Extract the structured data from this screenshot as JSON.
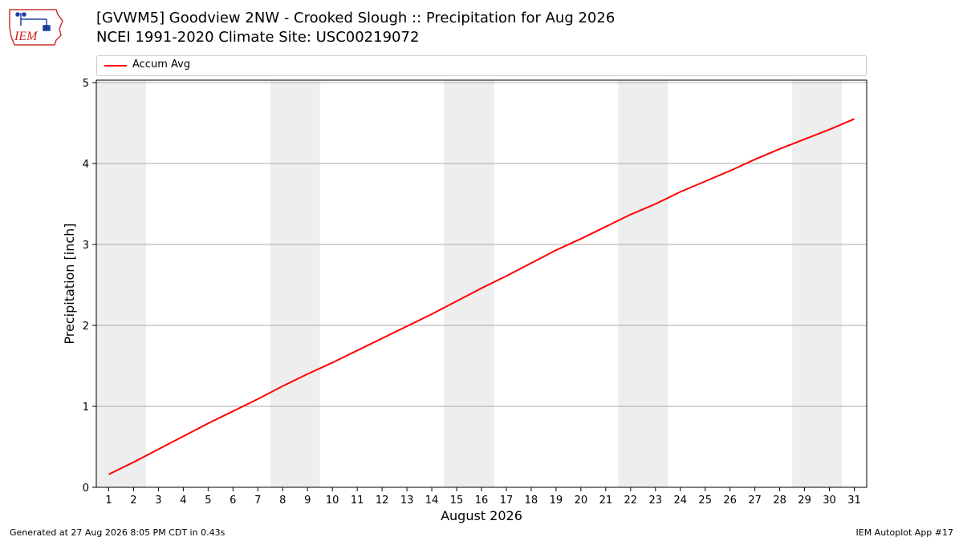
{
  "header": {
    "title_line1": "[GVWM5] Goodview 2NW - Crooked Slough :: Precipitation for Aug 2026",
    "title_line2": "NCEI 1991-2020 Climate Site: USC00219072"
  },
  "logo": {
    "text": "IEM"
  },
  "footer": {
    "generated": "Generated at 27 Aug 2026 8:05 PM CDT in 0.43s",
    "app": "IEM Autoplot App #17"
  },
  "chart_data": {
    "type": "line",
    "title": "[GVWM5] Goodview 2NW - Crooked Slough :: Precipitation for Aug 2026",
    "subtitle": "NCEI 1991-2020 Climate Site: USC00219072",
    "xlabel": "August 2026",
    "ylabel": "Precipitation [inch]",
    "x": [
      1,
      2,
      3,
      4,
      5,
      6,
      7,
      8,
      9,
      10,
      11,
      12,
      13,
      14,
      15,
      16,
      17,
      18,
      19,
      20,
      21,
      22,
      23,
      24,
      25,
      26,
      27,
      28,
      29,
      30,
      31
    ],
    "series": [
      {
        "name": "Accum Avg",
        "color": "#ff0000",
        "values": [
          0.16,
          0.31,
          0.47,
          0.63,
          0.79,
          0.94,
          1.09,
          1.25,
          1.4,
          1.54,
          1.69,
          1.84,
          1.99,
          2.14,
          2.3,
          2.46,
          2.61,
          2.77,
          2.93,
          3.07,
          3.22,
          3.37,
          3.5,
          3.65,
          3.78,
          3.91,
          4.05,
          4.18,
          4.3,
          4.42,
          4.55
        ]
      }
    ],
    "xlim": [
      0.5,
      31.5
    ],
    "ylim": [
      0,
      5.03
    ],
    "yticks": [
      0,
      1,
      2,
      3,
      4,
      5
    ],
    "xticks": [
      1,
      2,
      3,
      4,
      5,
      6,
      7,
      8,
      9,
      10,
      11,
      12,
      13,
      14,
      15,
      16,
      17,
      18,
      19,
      20,
      21,
      22,
      23,
      24,
      25,
      26,
      27,
      28,
      29,
      30,
      31
    ],
    "weekend_bands": [
      [
        0.5,
        2.5
      ],
      [
        7.5,
        9.5
      ],
      [
        14.5,
        16.5
      ],
      [
        21.5,
        23.5
      ],
      [
        28.5,
        30.5
      ]
    ],
    "band_color": "#eeeeee",
    "grid": "horizontal",
    "grid_color": "#aaaaaa",
    "legend": "top"
  }
}
